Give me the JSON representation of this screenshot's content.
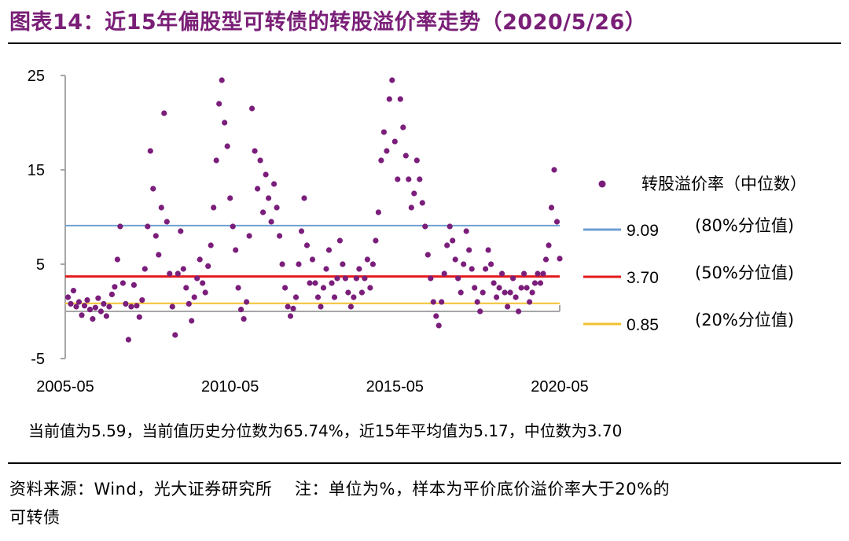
{
  "figure": {
    "title": "图表14：近15年偏股型可转债的转股溢价率走势（2020/5/26）",
    "note": "当前值为5.59，当前值历史分位数为65.74%，近15年平均值为5.17，中位数为3.70",
    "source_line1": "资料来源：Wind，光大证券研究所    注：单位为%，样本为平价底价溢价率大于20%的",
    "source_line2": "可转债"
  },
  "colors": {
    "title": "#7a1f77",
    "scatter": "#7b1e7b",
    "p80": "#6fa0d0",
    "p50": "#e41a1c",
    "p20": "#f2c232",
    "axis": "#a6a6a6"
  },
  "chart_data": {
    "type": "scatter",
    "xlabel": "",
    "ylabel": "",
    "x_ticks": [
      "2005-05",
      "2010-05",
      "2015-05",
      "2020-05"
    ],
    "x_range": [
      "2005-05",
      "2020-05"
    ],
    "ylim": [
      -5,
      25
    ],
    "y_ticks": [
      -5,
      5,
      15,
      25
    ],
    "grid": false,
    "legend_position": "right",
    "scatter_series": {
      "name": "转股溢价率（中位数）",
      "color": "#7b1e7b",
      "points": [
        {
          "x": "2005-06",
          "y": 1.5
        },
        {
          "x": "2005-07",
          "y": 0.8
        },
        {
          "x": "2005-08",
          "y": 2.2
        },
        {
          "x": "2005-09",
          "y": 0.5
        },
        {
          "x": "2005-10",
          "y": 1.0
        },
        {
          "x": "2005-11",
          "y": -0.4
        },
        {
          "x": "2005-12",
          "y": 0.6
        },
        {
          "x": "2006-01",
          "y": 1.2
        },
        {
          "x": "2006-02",
          "y": 0.2
        },
        {
          "x": "2006-03",
          "y": -0.8
        },
        {
          "x": "2006-04",
          "y": 0.4
        },
        {
          "x": "2006-05",
          "y": 1.4
        },
        {
          "x": "2006-06",
          "y": 0.0
        },
        {
          "x": "2006-07",
          "y": 0.8
        },
        {
          "x": "2006-08",
          "y": -0.5
        },
        {
          "x": "2006-09",
          "y": 0.5
        },
        {
          "x": "2006-10",
          "y": 1.8
        },
        {
          "x": "2006-11",
          "y": 2.6
        },
        {
          "x": "2006-12",
          "y": 5.5
        },
        {
          "x": "2007-01",
          "y": 9.0
        },
        {
          "x": "2007-02",
          "y": 3.0
        },
        {
          "x": "2007-03",
          "y": 0.8
        },
        {
          "x": "2007-04",
          "y": -3.0
        },
        {
          "x": "2007-05",
          "y": 0.5
        },
        {
          "x": "2007-06",
          "y": 2.8
        },
        {
          "x": "2007-07",
          "y": 0.6
        },
        {
          "x": "2007-08",
          "y": -0.6
        },
        {
          "x": "2007-09",
          "y": 1.2
        },
        {
          "x": "2007-10",
          "y": 4.5
        },
        {
          "x": "2007-11",
          "y": 9.0
        },
        {
          "x": "2007-12",
          "y": 17.0
        },
        {
          "x": "2008-01",
          "y": 13.0
        },
        {
          "x": "2008-02",
          "y": 8.0
        },
        {
          "x": "2008-03",
          "y": 6.0
        },
        {
          "x": "2008-04",
          "y": 11.0
        },
        {
          "x": "2008-05",
          "y": 21.0
        },
        {
          "x": "2008-06",
          "y": 9.5
        },
        {
          "x": "2008-07",
          "y": 4.0
        },
        {
          "x": "2008-08",
          "y": 0.5
        },
        {
          "x": "2008-09",
          "y": -2.5
        },
        {
          "x": "2008-10",
          "y": 4.0
        },
        {
          "x": "2008-11",
          "y": 8.5
        },
        {
          "x": "2008-12",
          "y": 4.5
        },
        {
          "x": "2009-01",
          "y": 2.5
        },
        {
          "x": "2009-02",
          "y": 0.8
        },
        {
          "x": "2009-03",
          "y": -1.0
        },
        {
          "x": "2009-04",
          "y": 1.5
        },
        {
          "x": "2009-05",
          "y": 3.5
        },
        {
          "x": "2009-06",
          "y": 5.5
        },
        {
          "x": "2009-07",
          "y": 3.0
        },
        {
          "x": "2009-08",
          "y": 2.0
        },
        {
          "x": "2009-09",
          "y": 4.8
        },
        {
          "x": "2009-10",
          "y": 7.0
        },
        {
          "x": "2009-11",
          "y": 11.0
        },
        {
          "x": "2009-12",
          "y": 16.0
        },
        {
          "x": "2010-01",
          "y": 22.0
        },
        {
          "x": "2010-02",
          "y": 24.5
        },
        {
          "x": "2010-03",
          "y": 20.0
        },
        {
          "x": "2010-04",
          "y": 17.5
        },
        {
          "x": "2010-05",
          "y": 12.0
        },
        {
          "x": "2010-06",
          "y": 9.0
        },
        {
          "x": "2010-07",
          "y": 6.5
        },
        {
          "x": "2010-08",
          "y": 2.5
        },
        {
          "x": "2010-09",
          "y": 0.2
        },
        {
          "x": "2010-10",
          "y": -0.8
        },
        {
          "x": "2010-11",
          "y": 1.0
        },
        {
          "x": "2010-12",
          "y": 8.0
        },
        {
          "x": "2011-01",
          "y": 21.5
        },
        {
          "x": "2011-02",
          "y": 17.0
        },
        {
          "x": "2011-03",
          "y": 13.0
        },
        {
          "x": "2011-04",
          "y": 16.0
        },
        {
          "x": "2011-05",
          "y": 10.5
        },
        {
          "x": "2011-06",
          "y": 14.5
        },
        {
          "x": "2011-07",
          "y": 12.0
        },
        {
          "x": "2011-08",
          "y": 9.5
        },
        {
          "x": "2011-09",
          "y": 13.5
        },
        {
          "x": "2011-10",
          "y": 11.0
        },
        {
          "x": "2011-11",
          "y": 8.0
        },
        {
          "x": "2011-12",
          "y": 5.0
        },
        {
          "x": "2012-01",
          "y": 2.5
        },
        {
          "x": "2012-02",
          "y": 0.5
        },
        {
          "x": "2012-03",
          "y": -0.5
        },
        {
          "x": "2012-04",
          "y": 0.3
        },
        {
          "x": "2012-05",
          "y": 1.5
        },
        {
          "x": "2012-06",
          "y": 5.0
        },
        {
          "x": "2012-07",
          "y": 8.5
        },
        {
          "x": "2012-08",
          "y": 12.0
        },
        {
          "x": "2012-09",
          "y": 7.0
        },
        {
          "x": "2012-10",
          "y": 3.0
        },
        {
          "x": "2012-11",
          "y": 5.5
        },
        {
          "x": "2012-12",
          "y": 3.0
        },
        {
          "x": "2013-01",
          "y": 1.5
        },
        {
          "x": "2013-02",
          "y": 0.5
        },
        {
          "x": "2013-03",
          "y": 2.5
        },
        {
          "x": "2013-04",
          "y": 4.5
        },
        {
          "x": "2013-05",
          "y": 6.5
        },
        {
          "x": "2013-06",
          "y": 3.0
        },
        {
          "x": "2013-07",
          "y": 1.5
        },
        {
          "x": "2013-08",
          "y": 3.5
        },
        {
          "x": "2013-09",
          "y": 7.5
        },
        {
          "x": "2013-10",
          "y": 5.0
        },
        {
          "x": "2013-11",
          "y": 3.5
        },
        {
          "x": "2013-12",
          "y": 2.0
        },
        {
          "x": "2014-01",
          "y": 0.5
        },
        {
          "x": "2014-02",
          "y": 1.5
        },
        {
          "x": "2014-03",
          "y": 3.5
        },
        {
          "x": "2014-04",
          "y": 4.5
        },
        {
          "x": "2014-05",
          "y": 2.0
        },
        {
          "x": "2014-06",
          "y": 3.5
        },
        {
          "x": "2014-07",
          "y": 5.5
        },
        {
          "x": "2014-08",
          "y": 2.5
        },
        {
          "x": "2014-09",
          "y": 5.0
        },
        {
          "x": "2014-10",
          "y": 7.5
        },
        {
          "x": "2014-11",
          "y": 10.5
        },
        {
          "x": "2014-12",
          "y": 16.0
        },
        {
          "x": "2015-01",
          "y": 19.0
        },
        {
          "x": "2015-02",
          "y": 17.0
        },
        {
          "x": "2015-03",
          "y": 22.5
        },
        {
          "x": "2015-04",
          "y": 24.5
        },
        {
          "x": "2015-05",
          "y": 18.0
        },
        {
          "x": "2015-06",
          "y": 14.0
        },
        {
          "x": "2015-07",
          "y": 22.5
        },
        {
          "x": "2015-08",
          "y": 19.5
        },
        {
          "x": "2015-09",
          "y": 16.5
        },
        {
          "x": "2015-10",
          "y": 14.0
        },
        {
          "x": "2015-11",
          "y": 11.0
        },
        {
          "x": "2015-12",
          "y": 12.5
        },
        {
          "x": "2016-01",
          "y": 16.0
        },
        {
          "x": "2016-02",
          "y": 14.0
        },
        {
          "x": "2016-03",
          "y": 11.5
        },
        {
          "x": "2016-04",
          "y": 9.0
        },
        {
          "x": "2016-05",
          "y": 6.0
        },
        {
          "x": "2016-06",
          "y": 3.5
        },
        {
          "x": "2016-07",
          "y": 1.0
        },
        {
          "x": "2016-08",
          "y": -0.5
        },
        {
          "x": "2016-09",
          "y": -1.5
        },
        {
          "x": "2016-10",
          "y": 1.0
        },
        {
          "x": "2016-11",
          "y": 4.0
        },
        {
          "x": "2016-12",
          "y": 7.0
        },
        {
          "x": "2017-01",
          "y": 9.0
        },
        {
          "x": "2017-02",
          "y": 7.5
        },
        {
          "x": "2017-03",
          "y": 5.5
        },
        {
          "x": "2017-04",
          "y": 3.5
        },
        {
          "x": "2017-05",
          "y": 2.0
        },
        {
          "x": "2017-06",
          "y": 5.0
        },
        {
          "x": "2017-07",
          "y": 8.5
        },
        {
          "x": "2017-08",
          "y": 6.5
        },
        {
          "x": "2017-09",
          "y": 4.5
        },
        {
          "x": "2017-10",
          "y": 2.5
        },
        {
          "x": "2017-11",
          "y": 1.0
        },
        {
          "x": "2017-12",
          "y": 0.0
        },
        {
          "x": "2018-01",
          "y": 2.0
        },
        {
          "x": "2018-02",
          "y": 4.5
        },
        {
          "x": "2018-03",
          "y": 6.5
        },
        {
          "x": "2018-04",
          "y": 5.0
        },
        {
          "x": "2018-05",
          "y": 3.0
        },
        {
          "x": "2018-06",
          "y": 1.5
        },
        {
          "x": "2018-07",
          "y": 2.5
        },
        {
          "x": "2018-08",
          "y": 4.0
        },
        {
          "x": "2018-09",
          "y": 2.0
        },
        {
          "x": "2018-10",
          "y": 0.5
        },
        {
          "x": "2018-11",
          "y": 2.0
        },
        {
          "x": "2018-12",
          "y": 3.5
        },
        {
          "x": "2019-01",
          "y": 1.5
        },
        {
          "x": "2019-02",
          "y": 0.0
        },
        {
          "x": "2019-03",
          "y": 2.5
        },
        {
          "x": "2019-04",
          "y": 4.0
        },
        {
          "x": "2019-05",
          "y": 2.5
        },
        {
          "x": "2019-06",
          "y": 1.0
        },
        {
          "x": "2019-07",
          "y": 2.0
        },
        {
          "x": "2019-08",
          "y": 3.0
        },
        {
          "x": "2019-09",
          "y": 4.0
        },
        {
          "x": "2019-10",
          "y": 3.0
        },
        {
          "x": "2019-11",
          "y": 4.0
        },
        {
          "x": "2019-12",
          "y": 5.5
        },
        {
          "x": "2020-01",
          "y": 7.0
        },
        {
          "x": "2020-02",
          "y": 11.0
        },
        {
          "x": "2020-03",
          "y": 15.0
        },
        {
          "x": "2020-04",
          "y": 9.5
        },
        {
          "x": "2020-05",
          "y": 5.59
        }
      ]
    },
    "reference_lines": [
      {
        "name": "80%分位值",
        "label": "9.09",
        "value": 9.09,
        "color": "#6fa0d0",
        "legend_text": "(80%分位值)"
      },
      {
        "name": "50%分位值",
        "label": "3.70",
        "value": 3.7,
        "color": "#e41a1c",
        "legend_text": "(50%分位值)"
      },
      {
        "name": "20%分位值",
        "label": "0.85",
        "value": 0.85,
        "color": "#f2c232",
        "legend_text": "(20%分位值)"
      }
    ]
  }
}
